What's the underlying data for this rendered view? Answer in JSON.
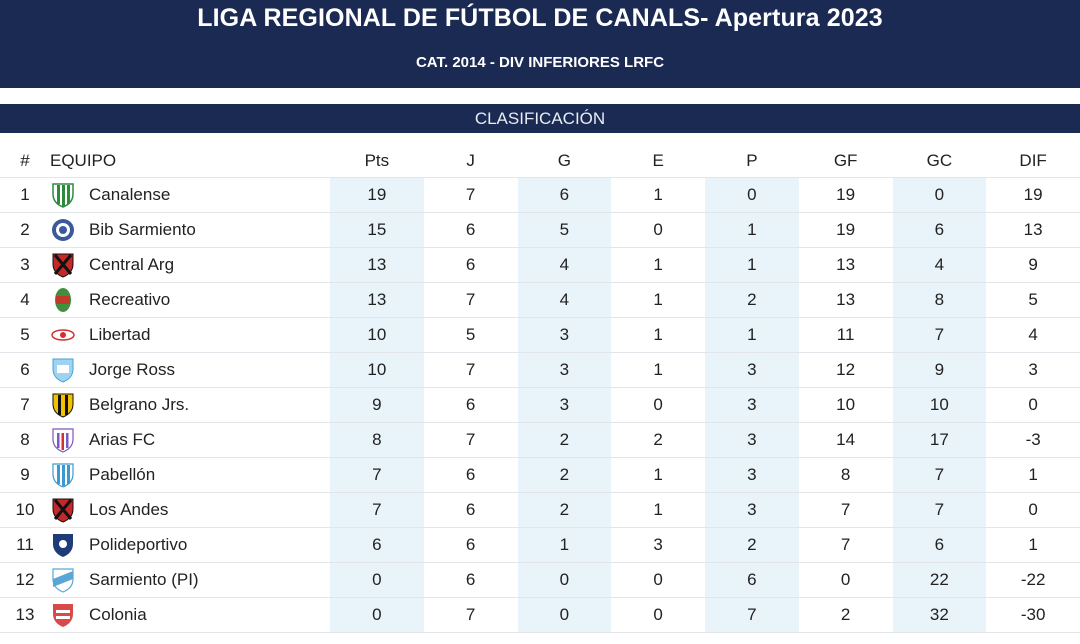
{
  "header": {
    "title": "LIGA REGIONAL DE FÚTBOL DE CANALS- Apertura 2023",
    "subtitle": "CAT. 2014 - DIV INFERIORES LRFC"
  },
  "section": {
    "title": "CLASIFICACIÓN"
  },
  "columns": [
    "#",
    "EQUIPO",
    "Pts",
    "J",
    "G",
    "E",
    "P",
    "GF",
    "GC",
    "DIF"
  ],
  "rows": [
    {
      "pos": "1",
      "team": "Canalense",
      "crest": "green-stripes",
      "pts": "19",
      "j": "7",
      "g": "6",
      "e": "1",
      "p": "0",
      "gf": "19",
      "gc": "0",
      "dif": "19"
    },
    {
      "pos": "2",
      "team": "Bib Sarmiento",
      "crest": "blue-round",
      "pts": "15",
      "j": "6",
      "g": "5",
      "e": "0",
      "p": "1",
      "gf": "19",
      "gc": "6",
      "dif": "13"
    },
    {
      "pos": "3",
      "team": "Central Arg",
      "crest": "red-black",
      "pts": "13",
      "j": "6",
      "g": "4",
      "e": "1",
      "p": "1",
      "gf": "13",
      "gc": "4",
      "dif": "9"
    },
    {
      "pos": "4",
      "team": "Recreativo",
      "crest": "green-red-oval",
      "pts": "13",
      "j": "7",
      "g": "4",
      "e": "1",
      "p": "2",
      "gf": "13",
      "gc": "8",
      "dif": "5"
    },
    {
      "pos": "5",
      "team": "Libertad",
      "crest": "red-wing",
      "pts": "10",
      "j": "5",
      "g": "3",
      "e": "1",
      "p": "1",
      "gf": "11",
      "gc": "7",
      "dif": "4"
    },
    {
      "pos": "6",
      "team": "Jorge Ross",
      "crest": "skyblue-shield",
      "pts": "10",
      "j": "7",
      "g": "3",
      "e": "1",
      "p": "3",
      "gf": "12",
      "gc": "9",
      "dif": "3"
    },
    {
      "pos": "7",
      "team": "Belgrano Jrs.",
      "crest": "yellow-black",
      "pts": "9",
      "j": "6",
      "g": "3",
      "e": "0",
      "p": "3",
      "gf": "10",
      "gc": "10",
      "dif": "0"
    },
    {
      "pos": "8",
      "team": "Arias FC",
      "crest": "violet-stripes",
      "pts": "8",
      "j": "7",
      "g": "2",
      "e": "2",
      "p": "3",
      "gf": "14",
      "gc": "17",
      "dif": "-3"
    },
    {
      "pos": "9",
      "team": "Pabellón",
      "crest": "lightblue-stripes",
      "pts": "7",
      "j": "6",
      "g": "2",
      "e": "1",
      "p": "3",
      "gf": "8",
      "gc": "7",
      "dif": "1"
    },
    {
      "pos": "10",
      "team": "Los Andes",
      "crest": "red-black",
      "pts": "7",
      "j": "6",
      "g": "2",
      "e": "1",
      "p": "3",
      "gf": "7",
      "gc": "7",
      "dif": "0"
    },
    {
      "pos": "11",
      "team": "Polideportivo",
      "crest": "navy-shield",
      "pts": "6",
      "j": "6",
      "g": "1",
      "e": "3",
      "p": "2",
      "gf": "7",
      "gc": "6",
      "dif": "1"
    },
    {
      "pos": "12",
      "team": "Sarmiento (PI)",
      "crest": "skyblue-white",
      "pts": "0",
      "j": "6",
      "g": "0",
      "e": "0",
      "p": "6",
      "gf": "0",
      "gc": "22",
      "dif": "-22"
    },
    {
      "pos": "13",
      "team": "Colonia",
      "crest": "red-white",
      "pts": "0",
      "j": "7",
      "g": "0",
      "e": "0",
      "p": "7",
      "gf": "2",
      "gc": "32",
      "dif": "-30"
    }
  ]
}
